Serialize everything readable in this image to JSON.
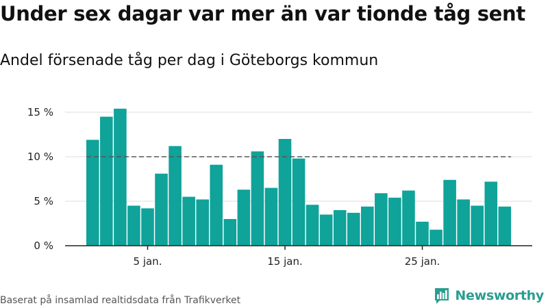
{
  "title": "Under sex dagar var mer än var tionde tåg sent",
  "subtitle": "Andel försenade tåg per dag i Göteborgs kommun",
  "footnote": "Baserat på insamlad realtidsdata från Trafikverket",
  "brand": {
    "name": "Newsworthy",
    "color": "#2a9d8f",
    "icon": "newsworthy-logo-icon"
  },
  "colors": {
    "bar": "#0fa39a",
    "reference_line": "#555555",
    "grid": "#dddddd",
    "axis": "#222222"
  },
  "chart_data": {
    "type": "bar",
    "x": [
      1,
      2,
      3,
      4,
      5,
      6,
      7,
      8,
      9,
      10,
      11,
      12,
      13,
      14,
      15,
      16,
      17,
      18,
      19,
      20,
      21,
      22,
      23,
      24,
      25,
      26,
      27,
      28,
      29,
      30,
      31
    ],
    "values": [
      11.9,
      14.5,
      15.4,
      4.5,
      4.2,
      8.1,
      11.2,
      5.5,
      5.2,
      9.1,
      3.0,
      6.3,
      10.6,
      6.5,
      12.0,
      9.8,
      4.6,
      3.5,
      4.0,
      3.7,
      4.4,
      5.9,
      5.4,
      6.2,
      2.7,
      1.8,
      7.4,
      5.2,
      4.5,
      7.2,
      4.4
    ],
    "xticks": [
      5,
      15,
      25
    ],
    "xtick_labels": [
      "5 jan.",
      "15 jan.",
      "25 jan."
    ],
    "ylim": [
      0,
      15
    ],
    "yticks": [
      0,
      5,
      10,
      15
    ],
    "ytick_labels": [
      "0 %",
      "5 %",
      "10 %",
      "15 %"
    ],
    "reference_line": 10,
    "grid": true,
    "xlabel": "",
    "ylabel": ""
  }
}
